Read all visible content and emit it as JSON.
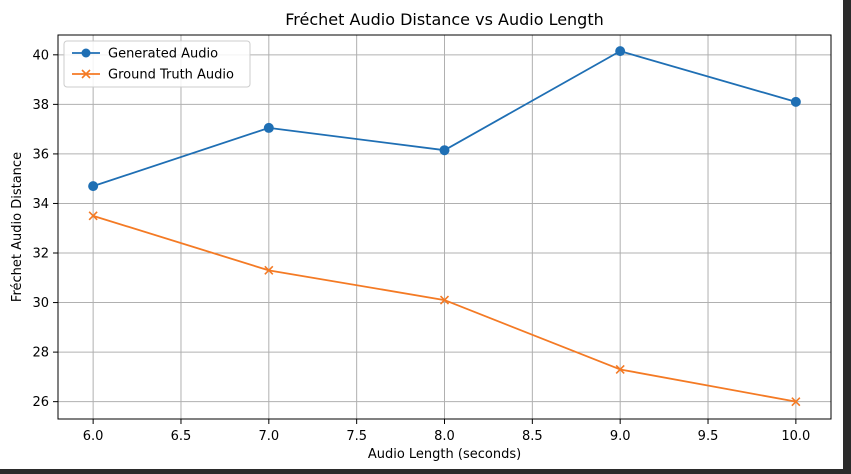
{
  "colors": {
    "series_0": "#1f6fb4",
    "series_1": "#f47a24",
    "grid": "#b0b0b0",
    "axis": "#000000"
  },
  "chart_data": {
    "type": "line",
    "title": "Fréchet Audio Distance vs Audio Length",
    "xlabel": "Audio Length (seconds)",
    "ylabel": "Fréchet Audio Distance",
    "xlim": [
      5.8,
      10.2
    ],
    "ylim": [
      25.3,
      40.8
    ],
    "xticks": [
      6.0,
      6.5,
      7.0,
      7.5,
      8.0,
      8.5,
      9.0,
      9.5,
      10.0
    ],
    "xtick_labels": [
      "6.0",
      "6.5",
      "7.0",
      "7.5",
      "8.0",
      "8.5",
      "9.0",
      "9.5",
      "10.0"
    ],
    "yticks": [
      26,
      28,
      30,
      32,
      34,
      36,
      38,
      40
    ],
    "ytick_labels": [
      "26",
      "28",
      "30",
      "32",
      "34",
      "36",
      "38",
      "40"
    ],
    "grid": true,
    "legend_position": "top-left",
    "x": [
      6.0,
      7.0,
      8.0,
      9.0,
      10.0
    ],
    "series": [
      {
        "name": "Generated Audio",
        "marker": "circle",
        "values": [
          34.7,
          37.05,
          36.15,
          40.15,
          38.1
        ]
      },
      {
        "name": "Ground Truth Audio",
        "marker": "x",
        "values": [
          33.5,
          31.3,
          30.1,
          27.3,
          26.0
        ]
      }
    ]
  }
}
